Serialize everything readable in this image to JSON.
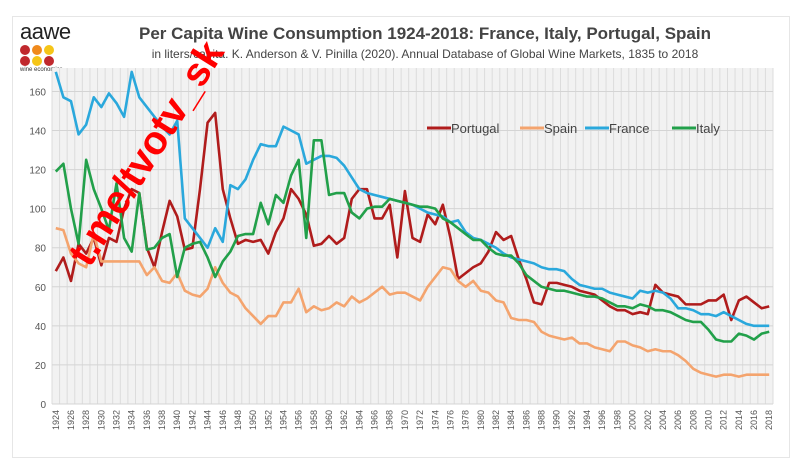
{
  "logo": {
    "text": "aawe",
    "subtext": "wine economics",
    "dot_colors": [
      "#c0282d",
      "#f08a1c",
      "#f5c518",
      "#c0282d",
      "#f5c518",
      "#c0282d"
    ]
  },
  "watermark": "t.me/tvotv_sk",
  "chart_data": {
    "type": "line",
    "title": "Per Capita Wine Consumption 1924-2018: France, Italy, Portugal, Spain",
    "subtitle": "in liters/capita. K. Anderson & V. Pinilla (2020). Annual Database of Global Wine Markets, 1835 to 2018",
    "xlabel": "",
    "ylabel": "",
    "x_start": 1924,
    "x_end": 2018,
    "x_tick_step": 2,
    "ylim": [
      0,
      172
    ],
    "y_ticks": [
      0,
      20,
      40,
      60,
      80,
      100,
      120,
      140,
      160
    ],
    "grid": true,
    "legend_position": "top-right",
    "series": [
      {
        "name": "Portugal",
        "color": "#b01c1c",
        "values": [
          68,
          75,
          63,
          82,
          77,
          85,
          71,
          85,
          83,
          100,
          110,
          108,
          80,
          70,
          88,
          104,
          96,
          79,
          80,
          110,
          144,
          149,
          110,
          95,
          82,
          84,
          83,
          84,
          77,
          88,
          95,
          110,
          105,
          97,
          81,
          82,
          86,
          82,
          85,
          105,
          110,
          110,
          95,
          95,
          102,
          75,
          109,
          85,
          83,
          97,
          92,
          102,
          85,
          64,
          67,
          70,
          72,
          78,
          88,
          84,
          86,
          74,
          64,
          52,
          51,
          62,
          62,
          61,
          60,
          58,
          57,
          56,
          53,
          50,
          48,
          48,
          46,
          47,
          46,
          61,
          57,
          56,
          55,
          51,
          51,
          51,
          53,
          53,
          56,
          43,
          53,
          55,
          52,
          49,
          50
        ]
      },
      {
        "name": "Spain",
        "color": "#f4a46e",
        "values": [
          90,
          89,
          77,
          72,
          70,
          87,
          73,
          73,
          73,
          73,
          73,
          73,
          66,
          70,
          63,
          62,
          67,
          58,
          56,
          55,
          59,
          70,
          62,
          57,
          55,
          49,
          45,
          41,
          45,
          45,
          52,
          52,
          59,
          47,
          50,
          48,
          49,
          52,
          50,
          55,
          52,
          54,
          57,
          60,
          56,
          57,
          57,
          55,
          53,
          60,
          65,
          70,
          69,
          63,
          60,
          63,
          58,
          57,
          53,
          52,
          44,
          43,
          43,
          42,
          37,
          35,
          34,
          33,
          34,
          31,
          31,
          29,
          28,
          27,
          32,
          32,
          30,
          29,
          27,
          28,
          27,
          27,
          25,
          22,
          18,
          16,
          15,
          14,
          15,
          15,
          14,
          15,
          15,
          15,
          15
        ]
      },
      {
        "name": "France",
        "color": "#2aa8dc",
        "values": [
          170,
          157,
          155,
          138,
          143,
          157,
          152,
          159,
          154,
          147,
          170,
          157,
          152,
          147,
          142,
          138,
          145,
          95,
          90,
          85,
          80,
          90,
          83,
          112,
          110,
          115,
          125,
          133,
          132,
          132,
          142,
          140,
          138,
          123,
          125,
          127,
          127,
          126,
          122,
          116,
          110,
          108,
          107,
          106,
          105,
          104,
          103,
          102,
          100,
          98,
          97,
          96,
          93,
          94,
          88,
          85,
          84,
          82,
          80,
          77,
          75,
          74,
          73,
          72,
          70,
          69,
          69,
          68,
          64,
          61,
          60,
          59,
          59,
          57,
          56,
          55,
          54,
          58,
          57,
          58,
          57,
          54,
          49,
          49,
          48,
          46,
          46,
          45,
          47,
          45,
          43,
          41,
          40,
          40,
          40
        ]
      },
      {
        "name": "Italy",
        "color": "#22a04a",
        "values": [
          119,
          123,
          100,
          82,
          125,
          110,
          100,
          89,
          113,
          85,
          78,
          108,
          79,
          80,
          85,
          87,
          65,
          80,
          82,
          83,
          75,
          65,
          73,
          78,
          86,
          87,
          87,
          103,
          92,
          107,
          103,
          117,
          125,
          85,
          135,
          135,
          107,
          108,
          108,
          98,
          95,
          100,
          101,
          101,
          105,
          104,
          103,
          102,
          101,
          101,
          100,
          95,
          93,
          90,
          87,
          84,
          84,
          80,
          77,
          76,
          76,
          72,
          66,
          63,
          60,
          59,
          58,
          58,
          57,
          56,
          55,
          55,
          54,
          52,
          50,
          50,
          49,
          51,
          50,
          48,
          48,
          47,
          45,
          43,
          42,
          42,
          38,
          33,
          32,
          32,
          36,
          35,
          33,
          36,
          37
        ]
      }
    ]
  }
}
